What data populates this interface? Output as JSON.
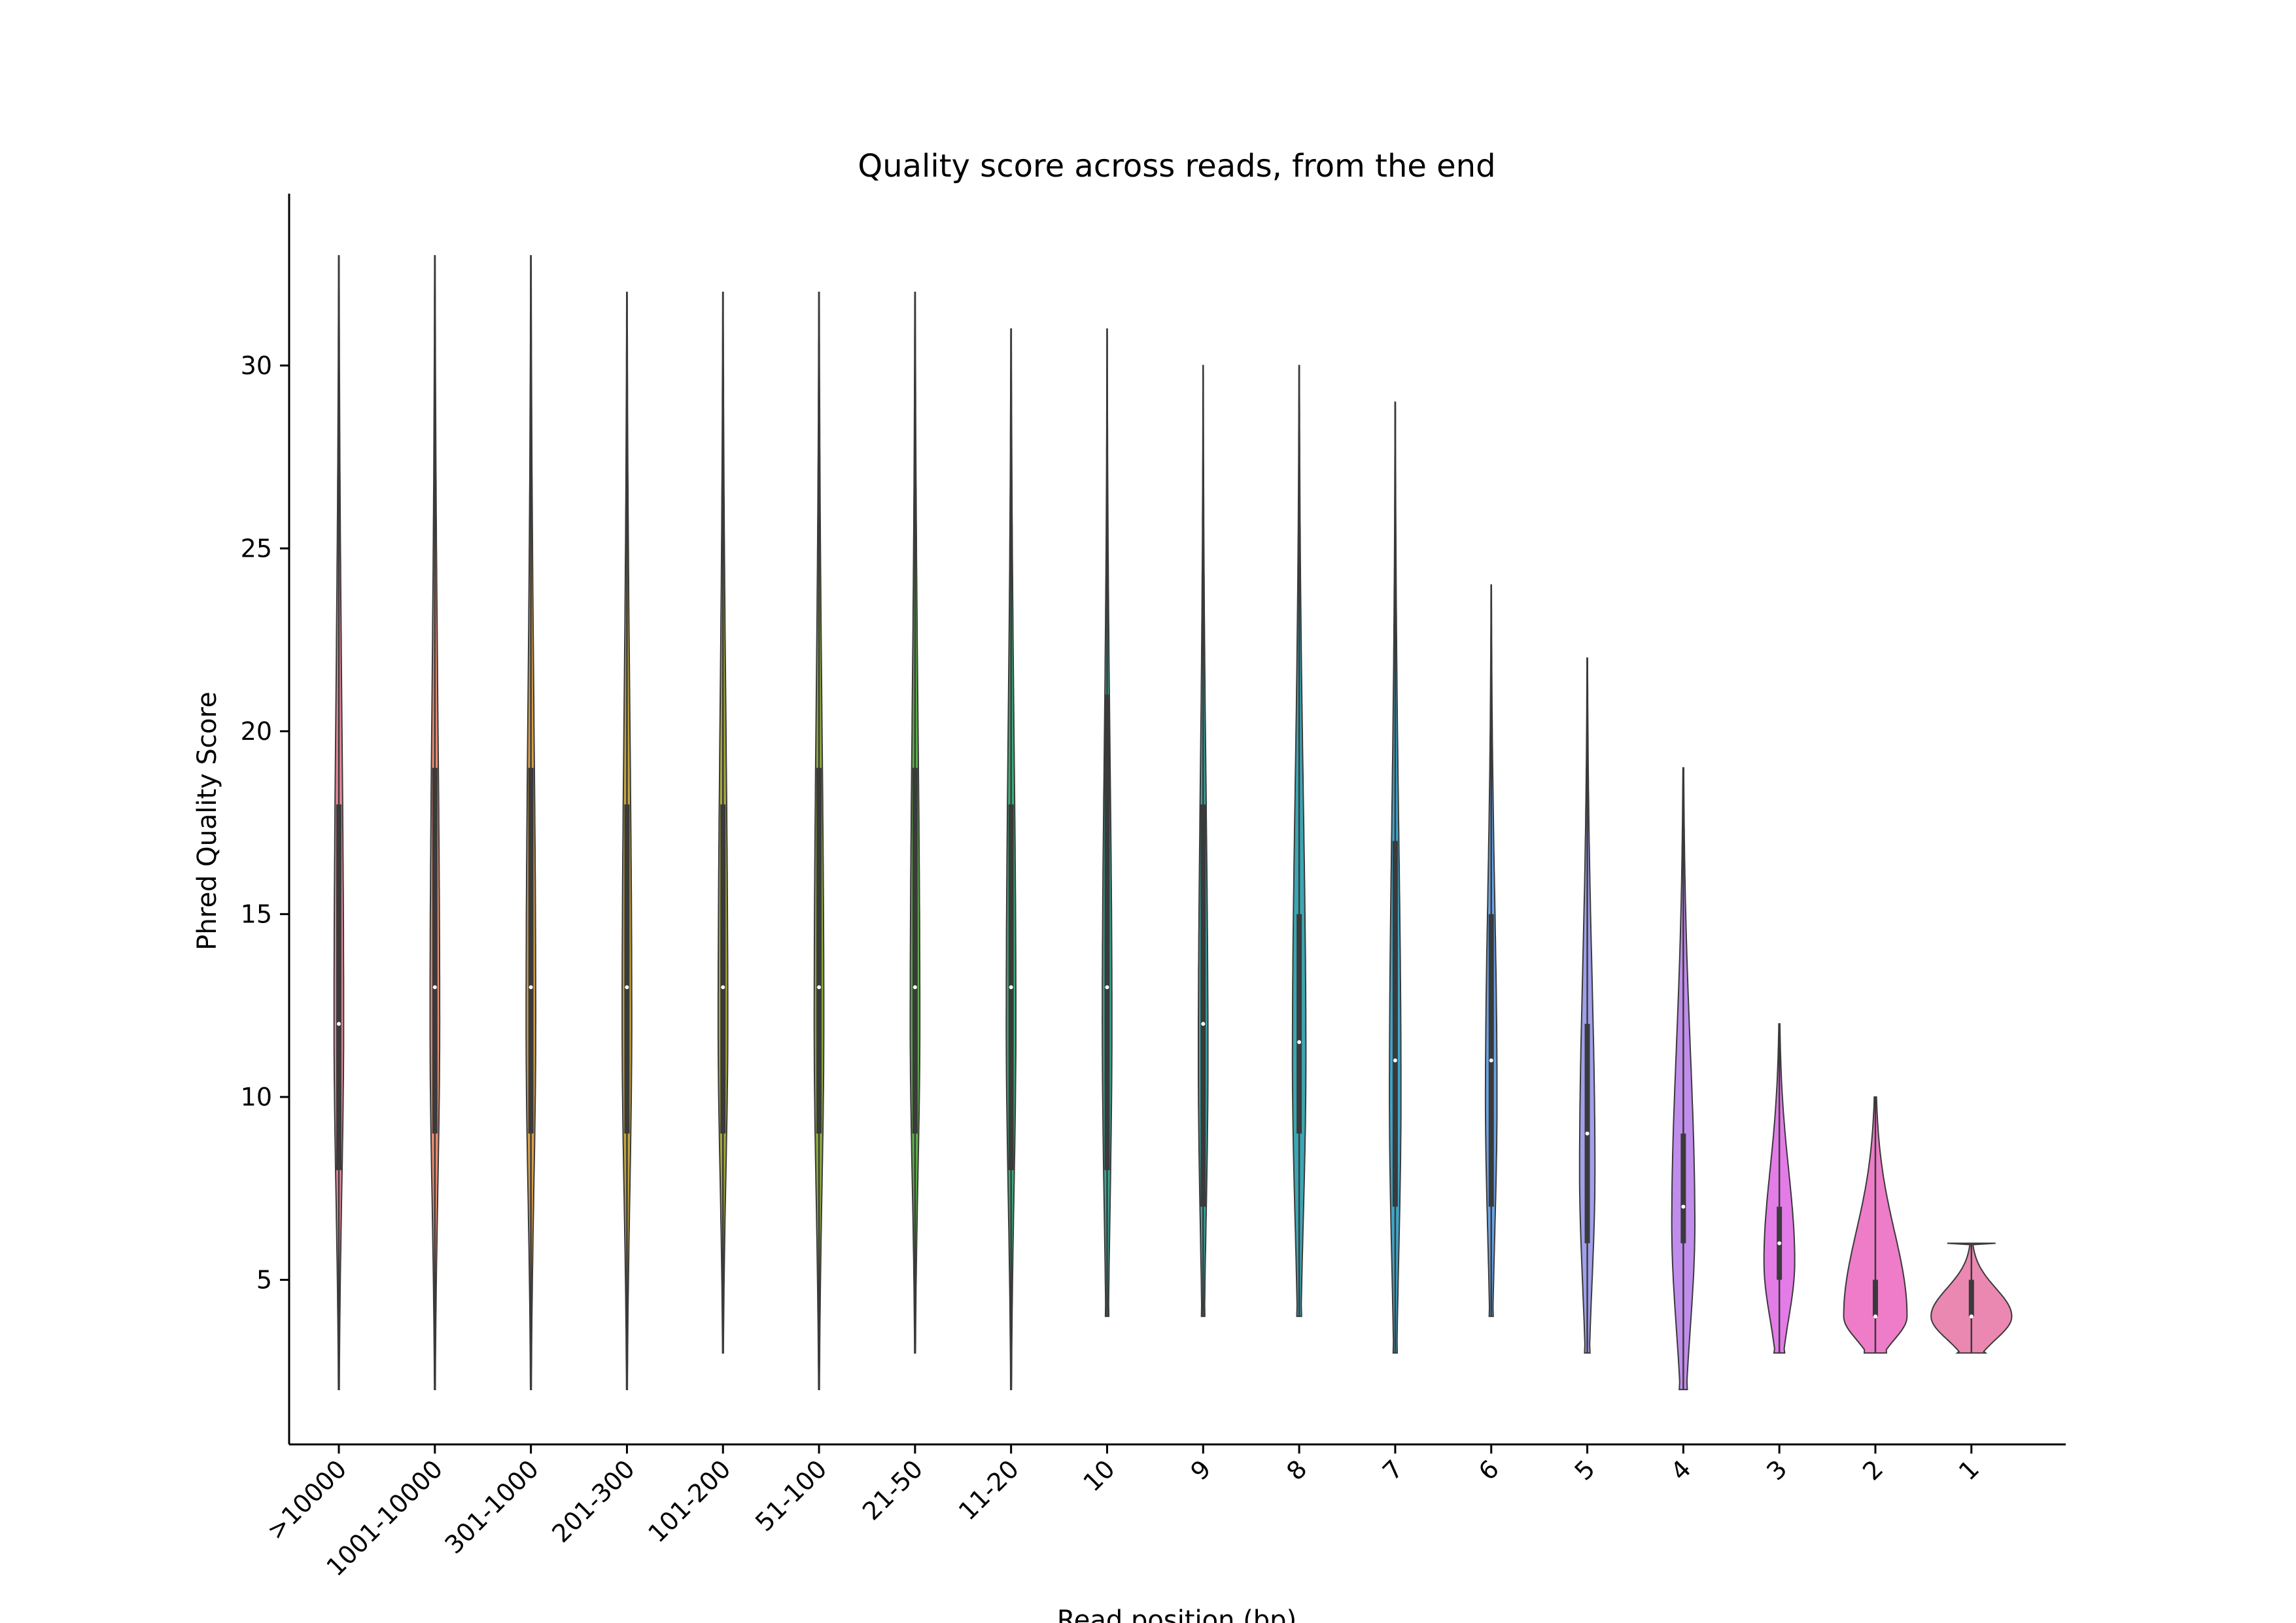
{
  "chart_data": {
    "type": "violin",
    "title": "Quality score across reads, from the end",
    "xlabel": "Read position (bp)",
    "ylabel": "Phred Quality Score",
    "ylim": [
      0.5,
      34.7
    ],
    "yticks": [
      5,
      10,
      15,
      20,
      25,
      30
    ],
    "grid": false,
    "legend": "none",
    "categories": [
      ">10000",
      "1001-10000",
      "301-1000",
      "201-300",
      "101-200",
      "51-100",
      "21-50",
      "11-20",
      "10",
      "9",
      "8",
      "7",
      "6",
      "5",
      "4",
      "3",
      "2",
      "1"
    ],
    "colors": [
      "#e8889b",
      "#ec8f73",
      "#d9a14b",
      "#c3a43c",
      "#a7a73b",
      "#8ead3d",
      "#5fb248",
      "#3cae79",
      "#38aa97",
      "#39a8a4",
      "#3ba7b4",
      "#40a5c9",
      "#6aa4e6",
      "#a1a0ec",
      "#c08ded",
      "#e37ce7",
      "#ee7cc9",
      "#eb88b2"
    ],
    "series": [
      {
        "category": ">10000",
        "min": 2,
        "q1": 8,
        "median": 12,
        "q3": 18,
        "max": 33,
        "mode": 12,
        "half_width": 0.05,
        "shape": "spindle"
      },
      {
        "category": "1001-10000",
        "min": 2,
        "q1": 9,
        "median": 13,
        "q3": 19,
        "max": 33,
        "mode": 12,
        "half_width": 0.05,
        "shape": "spindle"
      },
      {
        "category": "301-1000",
        "min": 2,
        "q1": 9,
        "median": 13,
        "q3": 19,
        "max": 33,
        "mode": 12,
        "half_width": 0.05,
        "shape": "spindle"
      },
      {
        "category": "201-300",
        "min": 2,
        "q1": 9,
        "median": 13,
        "q3": 18,
        "max": 32,
        "mode": 12,
        "half_width": 0.05,
        "shape": "spindle"
      },
      {
        "category": "101-200",
        "min": 3,
        "q1": 9,
        "median": 13,
        "q3": 18,
        "max": 32,
        "mode": 12,
        "half_width": 0.05,
        "shape": "spindle"
      },
      {
        "category": "51-100",
        "min": 2,
        "q1": 9,
        "median": 13,
        "q3": 19,
        "max": 32,
        "mode": 12,
        "half_width": 0.05,
        "shape": "spindle"
      },
      {
        "category": "21-50",
        "min": 3,
        "q1": 9,
        "median": 13,
        "q3": 19,
        "max": 32,
        "mode": 12,
        "half_width": 0.05,
        "shape": "spindle"
      },
      {
        "category": "11-20",
        "min": 2,
        "q1": 8,
        "median": 13,
        "q3": 18,
        "max": 31,
        "mode": 12,
        "half_width": 0.05,
        "shape": "spindle"
      },
      {
        "category": "10",
        "min": 4,
        "q1": 8,
        "median": 13,
        "q3": 21,
        "max": 31,
        "mode": 12,
        "half_width": 0.05,
        "shape": "flat_bottom"
      },
      {
        "category": "9",
        "min": 4,
        "q1": 7,
        "median": 12,
        "q3": 18,
        "max": 30,
        "mode": 11,
        "half_width": 0.05,
        "shape": "flat_bottom"
      },
      {
        "category": "8",
        "min": 4,
        "q1": 9,
        "median": 11.5,
        "q3": 15,
        "max": 30,
        "mode": 11,
        "half_width": 0.07,
        "shape": "flat_bottom"
      },
      {
        "category": "7",
        "min": 3,
        "q1": 7,
        "median": 11,
        "q3": 17,
        "max": 29,
        "mode": 10,
        "half_width": 0.06,
        "shape": "flat_bottom"
      },
      {
        "category": "6",
        "min": 4,
        "q1": 7,
        "median": 11,
        "q3": 15,
        "max": 24,
        "mode": 10,
        "half_width": 0.06,
        "shape": "flat_bottom"
      },
      {
        "category": "5",
        "min": 3,
        "q1": 6,
        "median": 9,
        "q3": 12,
        "max": 22,
        "mode": 8,
        "half_width": 0.08,
        "shape": "flat_bottom"
      },
      {
        "category": "4",
        "min": 2,
        "q1": 6,
        "median": 7,
        "q3": 9,
        "max": 19,
        "mode": 6.5,
        "half_width": 0.12,
        "shape": "flat_bottom"
      },
      {
        "category": "3",
        "min": 3,
        "q1": 5,
        "median": 6,
        "q3": 7,
        "max": 12,
        "mode": 5.5,
        "half_width": 0.16,
        "shape": "flat_bottom"
      },
      {
        "category": "2",
        "min": 3,
        "q1": 4,
        "median": 4,
        "q3": 5,
        "max": 10,
        "mode": 4,
        "half_width": 0.33,
        "shape": "flat_bottom"
      },
      {
        "category": "1",
        "min": 3,
        "q1": 4,
        "median": 4,
        "q3": 5,
        "max": 6,
        "mode": 4,
        "half_width": 0.42,
        "shape": "flat_both"
      }
    ]
  }
}
